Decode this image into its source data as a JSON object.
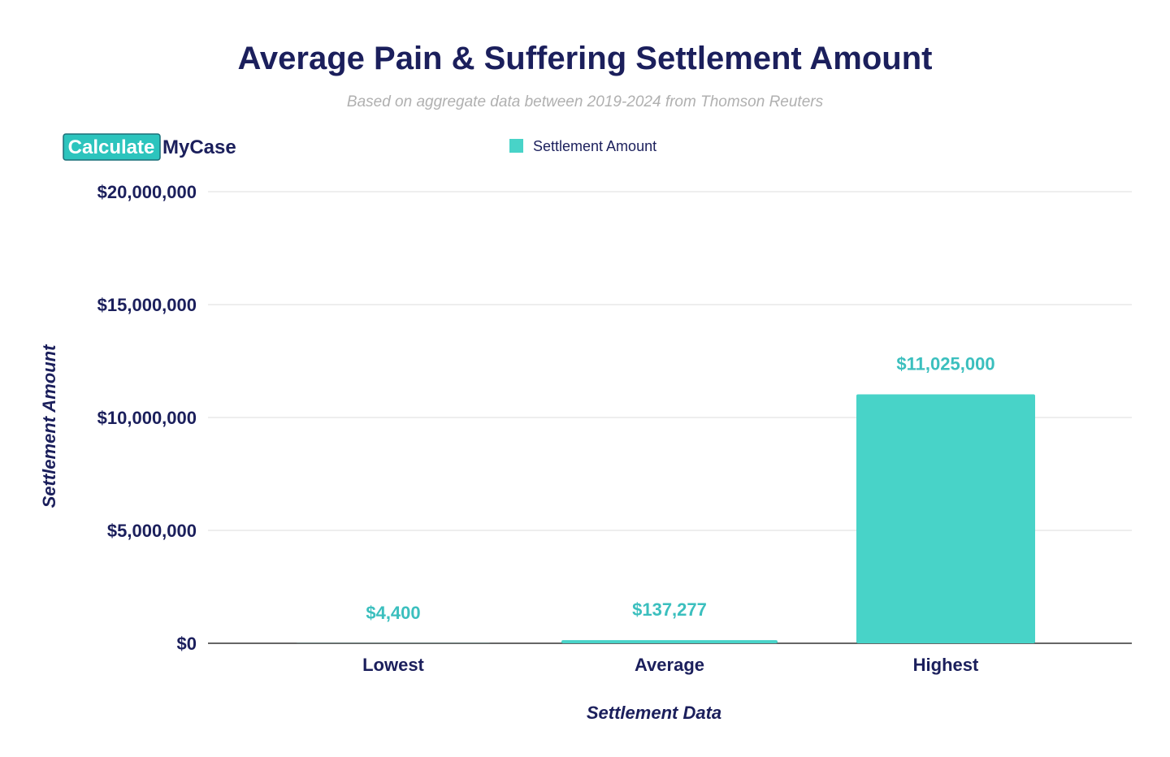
{
  "logo": {
    "part1": "Calculate",
    "part2": "MyCase"
  },
  "colors": {
    "bar": "#48d3c8",
    "text": "#1b1f5c",
    "label": "#3bbfbe"
  },
  "chart_data": {
    "type": "bar",
    "title": "Average Pain & Suffering Settlement Amount",
    "subtitle": "Based on aggregate data between 2019-2024 from Thomson Reuters",
    "xlabel": "Settlement Data",
    "ylabel": "Settlement Amount",
    "categories": [
      "Lowest",
      "Average",
      "Highest"
    ],
    "series": [
      {
        "name": "Settlement Amount",
        "values": [
          4400,
          137277,
          11025000
        ]
      }
    ],
    "data_labels": [
      "$4,400",
      "$137,277",
      "$11,025,000"
    ],
    "ylim": [
      0,
      20000000
    ],
    "yticks": [
      0,
      5000000,
      10000000,
      15000000,
      20000000
    ],
    "ytick_labels": [
      "$0",
      "$5,000,000",
      "$10,000,000",
      "$15,000,000",
      "$20,000,000"
    ],
    "grid": true,
    "legend": "top-center"
  }
}
